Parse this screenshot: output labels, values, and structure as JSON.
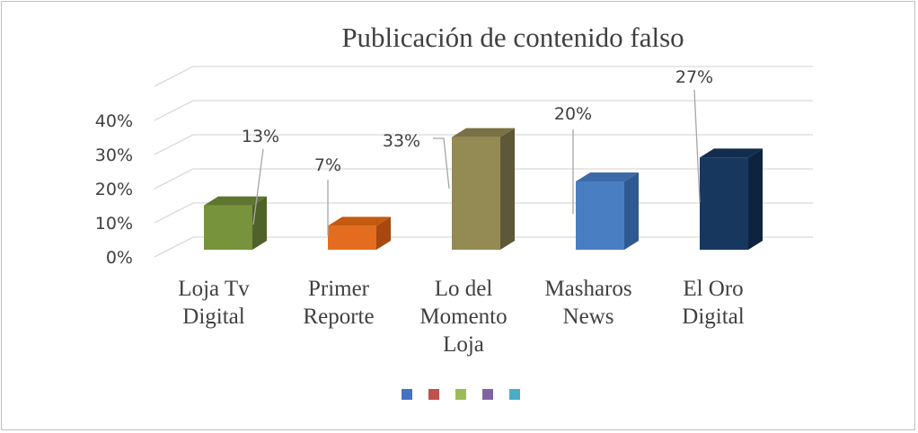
{
  "chart_data": {
    "type": "bar",
    "title": "Publicación de contenido falso",
    "categories": [
      [
        "Loja Tv",
        "Digital"
      ],
      [
        "Primer",
        "Reporte"
      ],
      [
        "Lo del",
        "Momento",
        "Loja"
      ],
      [
        "Masharos",
        "News"
      ],
      [
        "El Oro",
        "Digital"
      ]
    ],
    "values": [
      13,
      7,
      33,
      20,
      27
    ],
    "data_labels": [
      "13%",
      "7%",
      "33%",
      "20%",
      "27%"
    ],
    "y_ticks": [
      "0%",
      "10%",
      "20%",
      "30%",
      "40%"
    ],
    "ylim": [
      0,
      40
    ],
    "grid": true,
    "legend_position": "bottom",
    "legend_colors": [
      "#4472c4",
      "#c0504d",
      "#9bbb59",
      "#8064a2",
      "#4bacc6"
    ],
    "bar_colors": [
      {
        "front": "#77933c",
        "side": "#4f6228",
        "top": "#5f7530"
      },
      {
        "front": "#e46c1f",
        "side": "#a6480f",
        "top": "#c55a11"
      },
      {
        "front": "#948a54",
        "side": "#5e5838",
        "top": "#7a7145"
      },
      {
        "front": "#4a7ec2",
        "side": "#2e5a91",
        "top": "#3b6aa8"
      },
      {
        "front": "#17375e",
        "side": "#0d2440",
        "top": "#122c4d"
      }
    ]
  }
}
